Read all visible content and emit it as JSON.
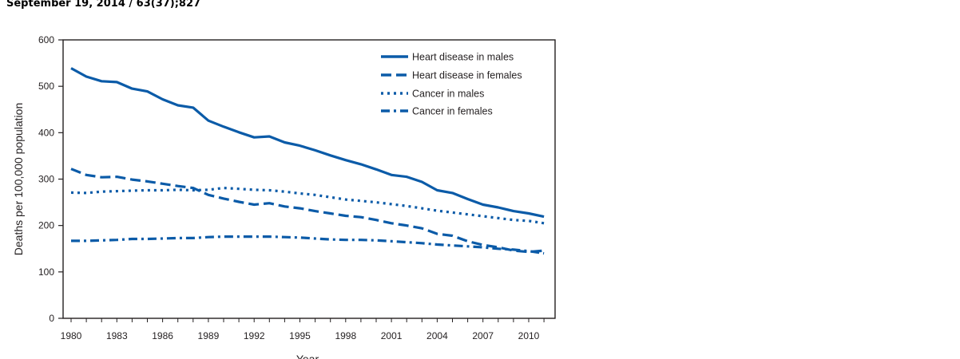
{
  "header": {
    "citation": "September 19, 2014 / 63(37);827"
  },
  "chart_data": {
    "type": "line",
    "xlabel": "Year",
    "ylabel": "Deaths per 100,000 population",
    "ylim": [
      0,
      600
    ],
    "xlim": [
      1980,
      2011
    ],
    "y_ticks": [
      0,
      100,
      200,
      300,
      400,
      500,
      600
    ],
    "x_ticks": [
      1980,
      1983,
      1986,
      1989,
      1992,
      1995,
      1998,
      2001,
      2004,
      2007,
      2010
    ],
    "legend_position": "top-right",
    "line_color": "#0b5ba8",
    "x": [
      1980,
      1981,
      1982,
      1983,
      1984,
      1985,
      1986,
      1987,
      1988,
      1989,
      1990,
      1991,
      1992,
      1993,
      1994,
      1995,
      1996,
      1997,
      1998,
      1999,
      2000,
      2001,
      2002,
      2003,
      2004,
      2005,
      2006,
      2007,
      2008,
      2009,
      2010,
      2011
    ],
    "series": [
      {
        "name": "Heart disease in males",
        "style": "solid",
        "values": [
          539,
          521,
          511,
          509,
          495,
          489,
          472,
          459,
          454,
          426,
          413,
          401,
          390,
          392,
          379,
          372,
          362,
          351,
          341,
          332,
          321,
          309,
          305,
          294,
          276,
          270,
          257,
          245,
          239,
          231,
          226,
          219
        ]
      },
      {
        "name": "Heart disease in females",
        "style": "dashed",
        "values": [
          322,
          309,
          304,
          305,
          299,
          295,
          290,
          285,
          281,
          266,
          258,
          251,
          245,
          248,
          241,
          237,
          231,
          226,
          221,
          218,
          212,
          205,
          200,
          194,
          182,
          178,
          166,
          158,
          153,
          146,
          143,
          146
        ]
      },
      {
        "name": "Cancer in males",
        "style": "dotted",
        "values": [
          271,
          270,
          273,
          274,
          275,
          276,
          276,
          277,
          276,
          277,
          281,
          279,
          277,
          276,
          273,
          269,
          266,
          261,
          256,
          253,
          250,
          246,
          242,
          237,
          232,
          228,
          224,
          220,
          216,
          212,
          210,
          205
        ]
      },
      {
        "name": "Cancer in females",
        "style": "dashdot",
        "values": [
          167,
          167,
          168,
          169,
          171,
          171,
          172,
          173,
          173,
          175,
          176,
          176,
          176,
          176,
          175,
          174,
          172,
          170,
          169,
          169,
          168,
          166,
          164,
          162,
          159,
          157,
          155,
          153,
          150,
          148,
          145,
          140
        ]
      }
    ]
  }
}
